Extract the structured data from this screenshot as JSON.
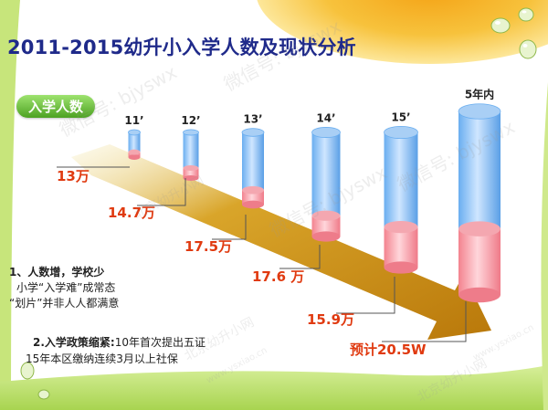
{
  "page": {
    "title": "2011-2015幼升小入学人数及现状分析",
    "label_pill": "入学人数"
  },
  "chart_data": {
    "type": "bar",
    "title": "2011-2015幼升小入学人数及现状分析",
    "categories": [
      "11’",
      "12’",
      "13’",
      "14’",
      "15’",
      "5年内"
    ],
    "value_labels": [
      "13万",
      "14.7万",
      "17.5万",
      "17.6 万",
      "15.9万",
      "预计20.5W"
    ],
    "values": [
      13,
      14.7,
      17.5,
      17.6,
      15.9,
      20.5
    ],
    "series_colors": {
      "top": "#6aaef0",
      "bottom": "#f59aa4",
      "arrow": "#d79a10"
    }
  },
  "notes": {
    "note1_head": "1、人数增，学校少",
    "note1_line1": "小学“入学难”成常态",
    "note1_line2": "“划片”并非人人都满意",
    "note2_head": "2.入学政策缩紧:",
    "note2_head_rest": "10年首次提出五证",
    "note2_line2": "15年本区缴纳连续3月以上社保"
  },
  "watermarks": [
    "微信号: bjyswx",
    "北京幼升小网",
    "www.ysxiao.cn"
  ]
}
